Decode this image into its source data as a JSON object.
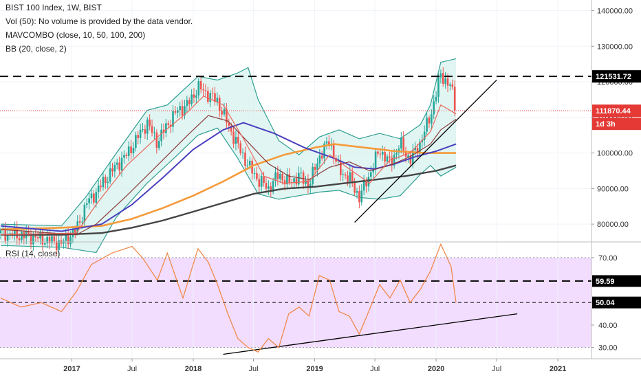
{
  "legend": {
    "line1": "BIST 100 Index, 1W, BIST",
    "line2": "Vol (50): No volume is provided by the data vendor.",
    "line3": "MAVCOMBO (close, 10, 50, 100, 200)",
    "line4": "BB (20, close, 2)",
    "rsi_label": "RSI (14, close)"
  },
  "badges": {
    "resistance": "121531.72",
    "last_price": "111870.44",
    "countdown": "1d 3h",
    "rsi_upper": "59.59",
    "rsi_mid": "50.04"
  },
  "colors": {
    "candle_up": "#26a69a",
    "candle_down": "#ef5350",
    "ma10": "#e8665a",
    "ma50": "#8a3b3b",
    "ma100": "#4a3fbf",
    "ma200": "#f59a3a",
    "ma_long": "#444444",
    "bb_band": "#2e9e92",
    "bb_fill": "#d9f2ef",
    "rsi_line": "#f08a4b",
    "rsi_fill": "#f2ddff",
    "price_line": "#e53935"
  },
  "chart_data": {
    "type": "candlestick",
    "price_axis": {
      "ticks": [
        "140000.00",
        "130000.00",
        "120000.00",
        "110000.00",
        "100000.00",
        "90000.00",
        "80000.00"
      ],
      "ylim": [
        75000,
        143000
      ]
    },
    "rsi_axis": {
      "ticks": [
        "70.00",
        "60.00",
        "50.00",
        "40.00",
        "30.00"
      ],
      "ylim": [
        25,
        77
      ]
    },
    "x_axis": {
      "ticks": [
        {
          "label": "2017",
          "date": "2017-01-01",
          "bold": true
        },
        {
          "label": "Jul",
          "date": "2017-07-01",
          "bold": false
        },
        {
          "label": "2018",
          "date": "2018-01-01",
          "bold": true
        },
        {
          "label": "Jul",
          "date": "2018-07-01",
          "bold": false
        },
        {
          "label": "2019",
          "date": "2019-01-01",
          "bold": true
        },
        {
          "label": "Jul",
          "date": "2019-07-01",
          "bold": false
        },
        {
          "label": "2020",
          "date": "2020-01-01",
          "bold": true
        },
        {
          "label": "Jul",
          "date": "2020-07-01",
          "bold": false
        },
        {
          "label": "2021",
          "date": "2021-01-01",
          "bold": true
        }
      ],
      "xlim": [
        "2016-05-30",
        "2021-04-12"
      ]
    },
    "close": [
      [
        "2016-06-01",
        77500
      ],
      [
        "2016-09-01",
        76500
      ],
      [
        "2016-12-01",
        74500
      ],
      [
        "2017-01-15",
        78500
      ],
      [
        "2017-02-15",
        86000
      ],
      [
        "2017-03-15",
        89000
      ],
      [
        "2017-04-15",
        93000
      ],
      [
        "2017-05-15",
        96500
      ],
      [
        "2017-06-15",
        99500
      ],
      [
        "2017-07-15",
        104000
      ],
      [
        "2017-08-15",
        108500
      ],
      [
        "2017-09-15",
        103000
      ],
      [
        "2017-10-15",
        108000
      ],
      [
        "2017-11-15",
        112000
      ],
      [
        "2017-12-15",
        113500
      ],
      [
        "2018-01-15",
        118500
      ],
      [
        "2018-02-15",
        116500
      ],
      [
        "2018-03-15",
        114500
      ],
      [
        "2018-04-15",
        108000
      ],
      [
        "2018-05-15",
        102000
      ],
      [
        "2018-06-15",
        96500
      ],
      [
        "2018-07-15",
        92500
      ],
      [
        "2018-08-15",
        90000
      ],
      [
        "2018-09-15",
        94000
      ],
      [
        "2018-10-15",
        91500
      ],
      [
        "2018-11-15",
        93500
      ],
      [
        "2018-12-15",
        91000
      ],
      [
        "2019-01-15",
        99000
      ],
      [
        "2019-02-15",
        103500
      ],
      [
        "2019-03-15",
        95000
      ],
      [
        "2019-04-15",
        93000
      ],
      [
        "2019-05-15",
        87500
      ],
      [
        "2019-06-15",
        94000
      ],
      [
        "2019-07-15",
        101000
      ],
      [
        "2019-08-15",
        97000
      ],
      [
        "2019-09-15",
        102500
      ],
      [
        "2019-10-15",
        98000
      ],
      [
        "2019-11-15",
        103000
      ],
      [
        "2019-12-15",
        110500
      ],
      [
        "2020-01-15",
        122000
      ],
      [
        "2020-02-15",
        118500
      ],
      [
        "2020-03-01",
        111870
      ]
    ],
    "series": [
      {
        "name": "MA10",
        "values": [
          [
            "2016-06-01",
            77000
          ],
          [
            "2017-01-15",
            77500
          ],
          [
            "2017-03-15",
            85500
          ],
          [
            "2017-06-15",
            96500
          ],
          [
            "2017-09-15",
            104500
          ],
          [
            "2017-12-15",
            111500
          ],
          [
            "2018-02-01",
            116000
          ],
          [
            "2018-04-01",
            113500
          ],
          [
            "2018-06-01",
            104000
          ],
          [
            "2018-08-01",
            93500
          ],
          [
            "2018-10-01",
            91500
          ],
          [
            "2018-12-15",
            92000
          ],
          [
            "2019-02-15",
            99500
          ],
          [
            "2019-04-15",
            95500
          ],
          [
            "2019-06-15",
            91500
          ],
          [
            "2019-08-15",
            98000
          ],
          [
            "2019-10-15",
            100000
          ],
          [
            "2019-12-15",
            106000
          ],
          [
            "2020-01-15",
            113500
          ],
          [
            "2020-03-01",
            111000
          ]
        ]
      },
      {
        "name": "MA50",
        "values": [
          [
            "2016-06-01",
            78500
          ],
          [
            "2017-01-15",
            77000
          ],
          [
            "2017-03-15",
            80000
          ],
          [
            "2017-06-15",
            88000
          ],
          [
            "2017-09-15",
            96500
          ],
          [
            "2017-12-15",
            105000
          ],
          [
            "2018-02-15",
            110500
          ],
          [
            "2018-04-15",
            109000
          ],
          [
            "2018-06-15",
            103000
          ],
          [
            "2018-08-15",
            97000
          ],
          [
            "2018-10-15",
            93500
          ],
          [
            "2018-12-15",
            92500
          ],
          [
            "2019-02-15",
            96000
          ],
          [
            "2019-04-15",
            97500
          ],
          [
            "2019-06-15",
            95000
          ],
          [
            "2019-08-15",
            96500
          ],
          [
            "2019-10-15",
            99000
          ],
          [
            "2019-12-15",
            102500
          ],
          [
            "2020-01-15",
            106500
          ],
          [
            "2020-03-01",
            109500
          ]
        ]
      },
      {
        "name": "MA100",
        "values": [
          [
            "2016-06-01",
            79500
          ],
          [
            "2016-12-01",
            78000
          ],
          [
            "2017-04-01",
            80000
          ],
          [
            "2017-07-01",
            85500
          ],
          [
            "2017-10-01",
            93000
          ],
          [
            "2018-01-01",
            101000
          ],
          [
            "2018-04-01",
            106500
          ],
          [
            "2018-06-01",
            108500
          ],
          [
            "2018-09-01",
            105500
          ],
          [
            "2018-12-01",
            101500
          ],
          [
            "2019-03-01",
            98500
          ],
          [
            "2019-05-01",
            96000
          ],
          [
            "2019-07-01",
            95500
          ],
          [
            "2019-09-01",
            97000
          ],
          [
            "2019-11-01",
            99000
          ],
          [
            "2020-01-01",
            100500
          ],
          [
            "2020-03-01",
            102500
          ]
        ]
      },
      {
        "name": "MA200",
        "values": [
          [
            "2016-06-01",
            78500
          ],
          [
            "2016-12-01",
            79000
          ],
          [
            "2017-04-01",
            79500
          ],
          [
            "2017-07-01",
            81500
          ],
          [
            "2017-10-01",
            84500
          ],
          [
            "2018-01-01",
            88000
          ],
          [
            "2018-04-01",
            92000
          ],
          [
            "2018-07-01",
            96500
          ],
          [
            "2018-10-01",
            99500
          ],
          [
            "2019-01-01",
            101500
          ],
          [
            "2019-03-01",
            102500
          ],
          [
            "2019-06-01",
            101500
          ],
          [
            "2019-09-01",
            100500
          ],
          [
            "2019-12-01",
            100000
          ],
          [
            "2020-03-01",
            100000
          ]
        ]
      },
      {
        "name": "MA-long",
        "values": [
          [
            "2016-06-01",
            77000
          ],
          [
            "2016-12-01",
            77000
          ],
          [
            "2017-04-01",
            77500
          ],
          [
            "2017-07-01",
            79000
          ],
          [
            "2017-10-01",
            81000
          ],
          [
            "2018-01-01",
            83500
          ],
          [
            "2018-04-01",
            86000
          ],
          [
            "2018-07-01",
            88500
          ],
          [
            "2018-10-01",
            90000
          ],
          [
            "2019-01-01",
            90500
          ],
          [
            "2019-04-01",
            91500
          ],
          [
            "2019-07-01",
            92500
          ],
          [
            "2019-10-01",
            93500
          ],
          [
            "2020-01-01",
            95000
          ],
          [
            "2020-03-01",
            96500
          ]
        ]
      },
      {
        "name": "BB-upper",
        "values": [
          [
            "2016-06-01",
            80000
          ],
          [
            "2016-12-01",
            79500
          ],
          [
            "2017-02-15",
            88000
          ],
          [
            "2017-05-15",
            100000
          ],
          [
            "2017-08-15",
            112000
          ],
          [
            "2017-10-15",
            113500
          ],
          [
            "2018-01-15",
            121500
          ],
          [
            "2018-03-15",
            120500
          ],
          [
            "2018-05-15",
            122500
          ],
          [
            "2018-06-15",
            124000
          ],
          [
            "2018-07-15",
            115000
          ],
          [
            "2018-09-15",
            103500
          ],
          [
            "2018-11-15",
            99500
          ],
          [
            "2019-01-15",
            104500
          ],
          [
            "2019-03-15",
            106500
          ],
          [
            "2019-05-15",
            104000
          ],
          [
            "2019-07-15",
            105500
          ],
          [
            "2019-09-15",
            104000
          ],
          [
            "2019-11-15",
            108000
          ],
          [
            "2019-12-15",
            113500
          ],
          [
            "2020-01-15",
            125500
          ],
          [
            "2020-03-01",
            126500
          ]
        ]
      },
      {
        "name": "BB-lower",
        "values": [
          [
            "2016-06-01",
            74000
          ],
          [
            "2016-12-01",
            73500
          ],
          [
            "2017-03-15",
            72000
          ],
          [
            "2017-05-15",
            82000
          ],
          [
            "2017-08-15",
            91500
          ],
          [
            "2017-11-15",
            99500
          ],
          [
            "2018-01-15",
            105000
          ],
          [
            "2018-03-15",
            107000
          ],
          [
            "2018-05-15",
            98500
          ],
          [
            "2018-07-15",
            88500
          ],
          [
            "2018-09-15",
            87000
          ],
          [
            "2018-11-15",
            88000
          ],
          [
            "2019-01-15",
            89000
          ],
          [
            "2019-03-15",
            89500
          ],
          [
            "2019-05-15",
            87500
          ],
          [
            "2019-07-15",
            87000
          ],
          [
            "2019-09-15",
            88000
          ],
          [
            "2019-11-15",
            94000
          ],
          [
            "2019-12-15",
            96500
          ],
          [
            "2020-01-15",
            93500
          ],
          [
            "2020-03-01",
            96000
          ]
        ]
      },
      {
        "name": "RSI",
        "values": [
          [
            "2016-06-01",
            52
          ],
          [
            "2016-08-01",
            48
          ],
          [
            "2016-10-01",
            50
          ],
          [
            "2016-12-01",
            46
          ],
          [
            "2017-01-15",
            55
          ],
          [
            "2017-03-01",
            67
          ],
          [
            "2017-05-01",
            72
          ],
          [
            "2017-07-01",
            75
          ],
          [
            "2017-08-01",
            70
          ],
          [
            "2017-09-15",
            60
          ],
          [
            "2017-10-15",
            72
          ],
          [
            "2017-12-01",
            52
          ],
          [
            "2018-01-15",
            74
          ],
          [
            "2018-02-15",
            68
          ],
          [
            "2018-03-15",
            58
          ],
          [
            "2018-04-15",
            45
          ],
          [
            "2018-05-15",
            34
          ],
          [
            "2018-06-15",
            30
          ],
          [
            "2018-07-15",
            28
          ],
          [
            "2018-08-15",
            34
          ],
          [
            "2018-09-15",
            30
          ],
          [
            "2018-10-15",
            45
          ],
          [
            "2018-11-15",
            48
          ],
          [
            "2018-12-15",
            44
          ],
          [
            "2019-01-15",
            62
          ],
          [
            "2019-02-15",
            60
          ],
          [
            "2019-03-15",
            46
          ],
          [
            "2019-04-15",
            44
          ],
          [
            "2019-05-15",
            36
          ],
          [
            "2019-06-15",
            47
          ],
          [
            "2019-07-15",
            58
          ],
          [
            "2019-08-15",
            52
          ],
          [
            "2019-09-15",
            60
          ],
          [
            "2019-10-15",
            50
          ],
          [
            "2019-11-15",
            56
          ],
          [
            "2019-12-15",
            64
          ],
          [
            "2020-01-15",
            76
          ],
          [
            "2020-02-15",
            66
          ],
          [
            "2020-03-01",
            50
          ]
        ]
      }
    ],
    "horizontal_lines": {
      "price_resistance": 121531.72,
      "price_last": 111870.44,
      "rsi_upper": 59.59,
      "rsi_mid": 50.04,
      "rsi_band": [
        30,
        70
      ]
    },
    "trendlines": [
      {
        "name": "price-support-trendline",
        "from": [
          "2019-05-01",
          80500
        ],
        "to": [
          "2020-07-01",
          120500
        ]
      },
      {
        "name": "rsi-support-trendline",
        "from": [
          "2018-04-01",
          27
        ],
        "to": [
          "2020-09-01",
          45
        ]
      }
    ]
  }
}
